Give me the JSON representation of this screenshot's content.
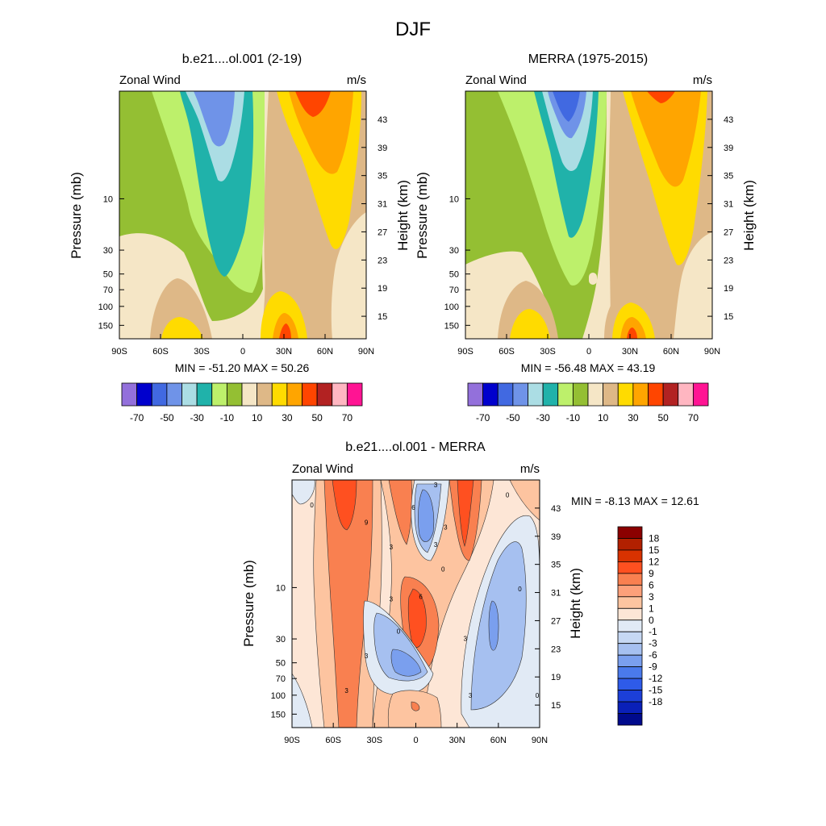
{
  "page": {
    "title": "DJF"
  },
  "colors": {
    "abs_levels": [
      "#9370DB",
      "#0000CD",
      "#4169E1",
      "#6F93E8",
      "#ABDDE4",
      "#20B2AA",
      "#BDF06B",
      "#94BF33",
      "#F5E6C6",
      "#DEB887",
      "#FFDB00",
      "#FFA500",
      "#FF4500",
      "#B22222",
      "#FFB6C1",
      "#FF1493"
    ],
    "diff_levels": [
      "#8B0000",
      "#B22000",
      "#D83200",
      "#FF5020",
      "#F98050",
      "#FDA07A",
      "#FDC4A0",
      "#FDE6D6",
      "#E1EAF5",
      "#C6D8F3",
      "#A6C0F0",
      "#7A9FEE",
      "#4A7AEC",
      "#2E5BE9",
      "#1C3FD8",
      "#0A20B8",
      "#000A8C"
    ]
  },
  "chart_data": [
    {
      "id": "model",
      "type": "contour",
      "title": "b.e21....ol.001 (2-19)",
      "left_string": "Zonal Wind",
      "right_string": "m/s",
      "ylabel": "Pressure (mb)",
      "ylabel_right": "Height (km)",
      "x_ticks": [
        "90S",
        "60S",
        "30S",
        "0",
        "30N",
        "60N",
        "90N"
      ],
      "x_tick_values": [
        -90,
        -60,
        -30,
        0,
        30,
        60,
        90
      ],
      "y_ticks": [
        "10",
        "30",
        "50",
        "70",
        "100",
        "150"
      ],
      "y_tick_values": [
        10,
        30,
        50,
        70,
        100,
        150
      ],
      "height_ticks": [
        "43",
        "39",
        "35",
        "31",
        "27",
        "23",
        "19",
        "15"
      ],
      "height_tick_values": [
        43,
        39,
        35,
        31,
        27,
        23,
        19,
        15
      ],
      "ylim": [
        1,
        200
      ],
      "stats": "MIN = -51.20  MAX =  50.26",
      "min": -51.2,
      "max": 50.26,
      "units": "m/s",
      "colorbar_labels": [
        "-70",
        "-50",
        "-30",
        "-10",
        "10",
        "30",
        "50",
        "70"
      ]
    },
    {
      "id": "obs",
      "type": "contour",
      "title": "MERRA (1975-2015)",
      "left_string": "Zonal Wind",
      "right_string": "m/s",
      "ylabel": "Pressure (mb)",
      "ylabel_right": "Height (km)",
      "x_ticks": [
        "90S",
        "60S",
        "30S",
        "0",
        "30N",
        "60N",
        "90N"
      ],
      "x_tick_values": [
        -90,
        -60,
        -30,
        0,
        30,
        60,
        90
      ],
      "y_ticks": [
        "10",
        "30",
        "50",
        "70",
        "100",
        "150"
      ],
      "y_tick_values": [
        10,
        30,
        50,
        70,
        100,
        150
      ],
      "height_ticks": [
        "43",
        "39",
        "35",
        "31",
        "27",
        "23",
        "19",
        "15"
      ],
      "height_tick_values": [
        43,
        39,
        35,
        31,
        27,
        23,
        19,
        15
      ],
      "ylim": [
        1,
        200
      ],
      "stats": "MIN = -56.48  MAX =  43.19",
      "min": -56.48,
      "max": 43.19,
      "units": "m/s",
      "colorbar_labels": [
        "-70",
        "-50",
        "-30",
        "-10",
        "10",
        "30",
        "50",
        "70"
      ]
    },
    {
      "id": "diff",
      "type": "contour",
      "title": "b.e21....ol.001 - MERRA",
      "left_string": "Zonal Wind",
      "right_string": "m/s",
      "ylabel": "Pressure (mb)",
      "ylabel_right": "Height (km)",
      "x_ticks": [
        "90S",
        "60S",
        "30S",
        "0",
        "30N",
        "60N",
        "90N"
      ],
      "x_tick_values": [
        -90,
        -60,
        -30,
        0,
        30,
        60,
        90
      ],
      "y_ticks": [
        "10",
        "30",
        "50",
        "70",
        "100",
        "150"
      ],
      "y_tick_values": [
        10,
        30,
        50,
        70,
        100,
        150
      ],
      "height_ticks": [
        "43",
        "39",
        "35",
        "31",
        "27",
        "23",
        "19",
        "15"
      ],
      "height_tick_values": [
        43,
        39,
        35,
        31,
        27,
        23,
        19,
        15
      ],
      "ylim": [
        1,
        200
      ],
      "stats": "MIN =  -8.13  MAX =  12.61",
      "min": -8.13,
      "max": 12.61,
      "units": "m/s",
      "colorbar_labels": [
        "18",
        "15",
        "12",
        "9",
        "6",
        "3",
        "1",
        "0",
        "-1",
        "-3",
        "-6",
        "-9",
        "-12",
        "-15",
        "-18"
      ],
      "contour_line_labels": [
        "0",
        "3",
        "6",
        "9",
        "-3",
        "-6"
      ]
    }
  ]
}
